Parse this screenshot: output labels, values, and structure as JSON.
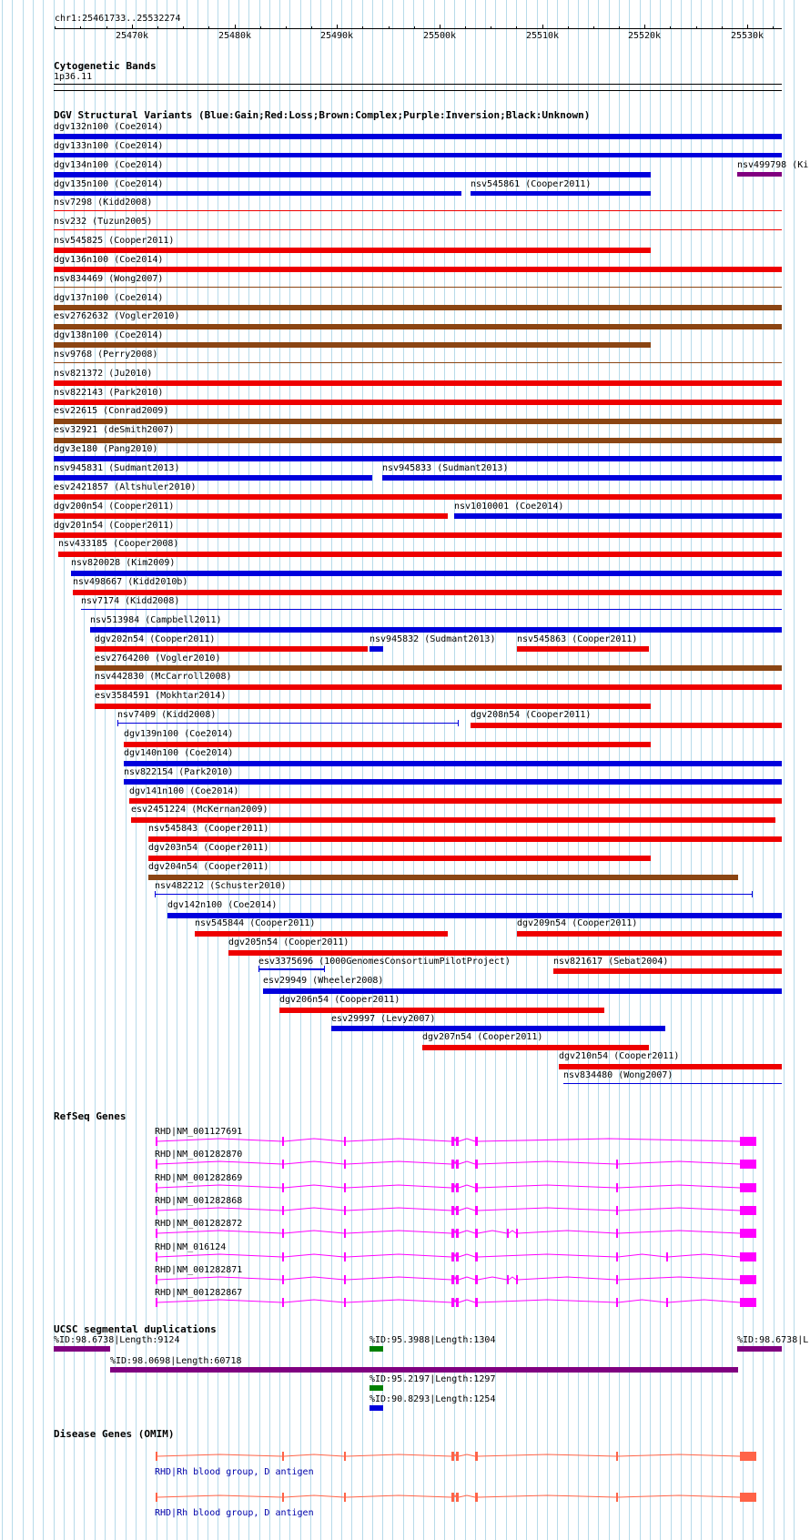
{
  "ruler": {
    "location": "chr1:25461733..25532274",
    "ticks": [
      "25470k",
      "25480k",
      "25490k",
      "25500k",
      "25510k",
      "25520k",
      "25530k"
    ]
  },
  "cytoband": {
    "title": "Cytogenetic Bands",
    "band": "1p36.11"
  },
  "dgv": {
    "title": "DGV Structural Variants (Blue:Gain;Red:Loss;Brown:Complex;Purple:Inversion;Black:Unknown)",
    "colors": {
      "gain": "#0000dd",
      "loss": "#ee0000",
      "complex": "#8b4513",
      "inversion": "#800080",
      "unknown": "#000000"
    },
    "features": [
      {
        "label": "dgv132n100 (Coe2014)"
      },
      {
        "label": "dgv133n100 (Coe2014)"
      },
      {
        "label": "dgv134n100 (Coe2014)"
      },
      {
        "label": "nsv499798 (Ki"
      },
      {
        "label": "dgv135n100 (Coe2014)"
      },
      {
        "label": "nsv545861 (Cooper2011)"
      },
      {
        "label": "nsv7298 (Kidd2008)"
      },
      {
        "label": "nsv232 (Tuzun2005)"
      },
      {
        "label": "nsv545825 (Cooper2011)"
      },
      {
        "label": "dgv136n100 (Coe2014)"
      },
      {
        "label": "nsv834469 (Wong2007)"
      },
      {
        "label": "dgv137n100 (Coe2014)"
      },
      {
        "label": "esv2762632 (Vogler2010)"
      },
      {
        "label": "dgv138n100 (Coe2014)"
      },
      {
        "label": "nsv9768 (Perry2008)"
      },
      {
        "label": "nsv821372 (Ju2010)"
      },
      {
        "label": "nsv822143 (Park2010)"
      },
      {
        "label": "esv22615 (Conrad2009)"
      },
      {
        "label": "esv32921 (deSmith2007)"
      },
      {
        "label": "dgv3e180 (Pang2010)"
      },
      {
        "label": "nsv945831 (Sudmant2013)"
      },
      {
        "label": "nsv945833 (Sudmant2013)"
      },
      {
        "label": "esv2421857 (Altshuler2010)"
      },
      {
        "label": "dgv200n54 (Cooper2011)"
      },
      {
        "label": "nsv1010001 (Coe2014)"
      },
      {
        "label": "dgv201n54 (Cooper2011)"
      },
      {
        "label": "nsv433185 (Cooper2008)"
      },
      {
        "label": "nsv820028 (Kim2009)"
      },
      {
        "label": "nsv498667 (Kidd2010b)"
      },
      {
        "label": "nsv7174 (Kidd2008)"
      },
      {
        "label": "nsv513984 (Campbell2011)"
      },
      {
        "label": "dgv202n54 (Cooper2011)"
      },
      {
        "label": "nsv945832 (Sudmant2013)"
      },
      {
        "label": "nsv545863 (Cooper2011)"
      },
      {
        "label": "esv2764200 (Vogler2010)"
      },
      {
        "label": "nsv442830 (McCarroll2008)"
      },
      {
        "label": "esv3584591 (Mokhtar2014)"
      },
      {
        "label": "nsv7409 (Kidd2008)"
      },
      {
        "label": "dgv208n54 (Cooper2011)"
      },
      {
        "label": "dgv139n100 (Coe2014)"
      },
      {
        "label": "dgv140n100 (Coe2014)"
      },
      {
        "label": "nsv822154 (Park2010)"
      },
      {
        "label": "dgv141n100 (Coe2014)"
      },
      {
        "label": "esv2451224 (McKernan2009)"
      },
      {
        "label": "nsv545843 (Cooper2011)"
      },
      {
        "label": "dgv203n54 (Cooper2011)"
      },
      {
        "label": "dgv204n54 (Cooper2011)"
      },
      {
        "label": "nsv482212 (Schuster2010)"
      },
      {
        "label": "dgv142n100 (Coe2014)"
      },
      {
        "label": "nsv545844 (Cooper2011)"
      },
      {
        "label": "dgv209n54 (Cooper2011)"
      },
      {
        "label": "dgv205n54 (Cooper2011)"
      },
      {
        "label": "esv3375696 (1000GenomesConsortiumPilotProject)"
      },
      {
        "label": "nsv821617 (Sebat2004)"
      },
      {
        "label": "esv29949 (Wheeler2008)"
      },
      {
        "label": "dgv206n54 (Cooper2011)"
      },
      {
        "label": "esv29997 (Levy2007)"
      },
      {
        "label": "dgv207n54 (Cooper2011)"
      },
      {
        "label": "dgv210n54 (Cooper2011)"
      },
      {
        "label": "nsv834480 (Wong2007)"
      }
    ]
  },
  "refseq": {
    "title": "RefSeq Genes",
    "color": "#ff00ff",
    "genes": [
      {
        "label": "RHD|NM_001127691"
      },
      {
        "label": "RHD|NM_001282870"
      },
      {
        "label": "RHD|NM_001282869"
      },
      {
        "label": "RHD|NM_001282868"
      },
      {
        "label": "RHD|NM_001282872"
      },
      {
        "label": "RHD|NM_016124"
      },
      {
        "label": "RHD|NM_001282871"
      },
      {
        "label": "RHD|NM_001282867"
      }
    ]
  },
  "segdups": {
    "title": "UCSC segmental duplications",
    "colors": {
      "purple": "#800080",
      "green": "#008000",
      "blue": "#0000dd"
    },
    "items": [
      {
        "label": "%ID:98.6738|Length:9124"
      },
      {
        "label": "%ID:95.3988|Length:1304"
      },
      {
        "label": "%ID:98.6738|L"
      },
      {
        "label": "%ID:98.0698|Length:60718"
      },
      {
        "label": "%ID:95.2197|Length:1297"
      },
      {
        "label": "%ID:90.8293|Length:1254"
      }
    ]
  },
  "omim": {
    "title": "Disease Genes (OMIM)",
    "color": "#ff6347",
    "label_color": "#0000aa",
    "genes": [
      {
        "label": "RHD|Rh blood group, D antigen"
      },
      {
        "label": "RHD|Rh blood group, D antigen"
      }
    ]
  }
}
